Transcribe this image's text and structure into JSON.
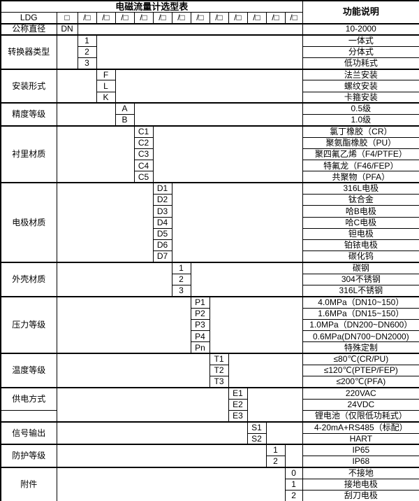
{
  "title": "电磁流量计选型表",
  "header": {
    "right_column": "功能说明",
    "ldg_label": "LDG",
    "first_box": "□",
    "slot_box": "/□",
    "slot_count": 12
  },
  "diameter_row": {
    "label": "公称直径",
    "code": "DN",
    "value": "10-2000"
  },
  "bands": [
    {
      "label": "转换器类型",
      "col": 1,
      "codes": [
        {
          "code": "1",
          "value": "一体式"
        },
        {
          "code": "2",
          "value": "分体式"
        },
        {
          "code": "3",
          "value": "低功耗式"
        }
      ]
    },
    {
      "label": "安装形式",
      "col": 2,
      "codes": [
        {
          "code": "F",
          "value": "法兰安装"
        },
        {
          "code": "L",
          "value": "螺纹安装"
        },
        {
          "code": "K",
          "value": "卡箍安装"
        }
      ]
    },
    {
      "label": "精度等级",
      "col": 3,
      "codes": [
        {
          "code": "A",
          "value": "0.5级"
        },
        {
          "code": "B",
          "value": "1.0级"
        }
      ]
    },
    {
      "label": "衬里材质",
      "col": 4,
      "codes": [
        {
          "code": "C1",
          "value": "氯丁橡胶（CR）"
        },
        {
          "code": "C2",
          "value": "聚氨酯橡胶（PU）"
        },
        {
          "code": "C3",
          "value": "聚四氟乙烯（F4/PTFE）"
        },
        {
          "code": "C4",
          "value": "特氟龙（F46/FEP）"
        },
        {
          "code": "C5",
          "value": "共聚物（PFA）"
        }
      ]
    },
    {
      "label": "电极材质",
      "col": 5,
      "codes": [
        {
          "code": "D1",
          "value": "316L电极"
        },
        {
          "code": "D2",
          "value": "钛合金"
        },
        {
          "code": "D3",
          "value": "哈B电极"
        },
        {
          "code": "D4",
          "value": "哈C电极"
        },
        {
          "code": "D5",
          "value": "钽电极"
        },
        {
          "code": "D6",
          "value": "铂铱电极"
        },
        {
          "code": "D7",
          "value": "碳化钨"
        }
      ]
    },
    {
      "label": "外壳材质",
      "col": 6,
      "codes": [
        {
          "code": "1",
          "value": "碳钢"
        },
        {
          "code": "2",
          "value": "304不锈钢"
        },
        {
          "code": "3",
          "value": "316L不锈钢"
        }
      ]
    },
    {
      "label": "压力等级",
      "col": 7,
      "codes": [
        {
          "code": "P1",
          "value": "4.0MPa（DN10~150）",
          "align": "left"
        },
        {
          "code": "P2",
          "value": "1.6MPa（DN15~150）",
          "align": "left"
        },
        {
          "code": "P3",
          "value": "1.0MPa（DN200~DN600）",
          "align": "left"
        },
        {
          "code": "P4",
          "value": "0.6MPa(DN700~DN2000)",
          "align": "left"
        },
        {
          "code": "Pn",
          "value": "特殊定制"
        }
      ]
    },
    {
      "label": "温度等级",
      "col": 8,
      "codes": [
        {
          "code": "T1",
          "value": "≤80℃(CR/PU)"
        },
        {
          "code": "T2",
          "value": "≤120℃(PTEP/FEP)"
        },
        {
          "code": "T3",
          "value": "≤200℃(PFA)"
        }
      ]
    },
    {
      "label": "供电方式",
      "col": 9,
      "label_rows": 2,
      "codes": [
        {
          "code": "E1",
          "value": "220VAC"
        },
        {
          "code": "E2",
          "value": "24VDC"
        },
        {
          "code": "E3",
          "value": "锂电池（仅限低功耗式）"
        }
      ]
    },
    {
      "label": "信号输出",
      "col": 10,
      "codes": [
        {
          "code": "S1",
          "value": "4-20mA+RS485（标配）"
        },
        {
          "code": "S2",
          "value": "HART"
        }
      ]
    },
    {
      "label": "防护等级",
      "col": 11,
      "codes": [
        {
          "code": "1",
          "value": "IP65"
        },
        {
          "code": "2",
          "value": "IP68"
        }
      ]
    },
    {
      "label": "附件",
      "col": 12,
      "codes": [
        {
          "code": "0",
          "value": "不接地"
        },
        {
          "code": "1",
          "value": "接地电极"
        },
        {
          "code": "2",
          "value": "刮刀电极"
        }
      ]
    }
  ]
}
